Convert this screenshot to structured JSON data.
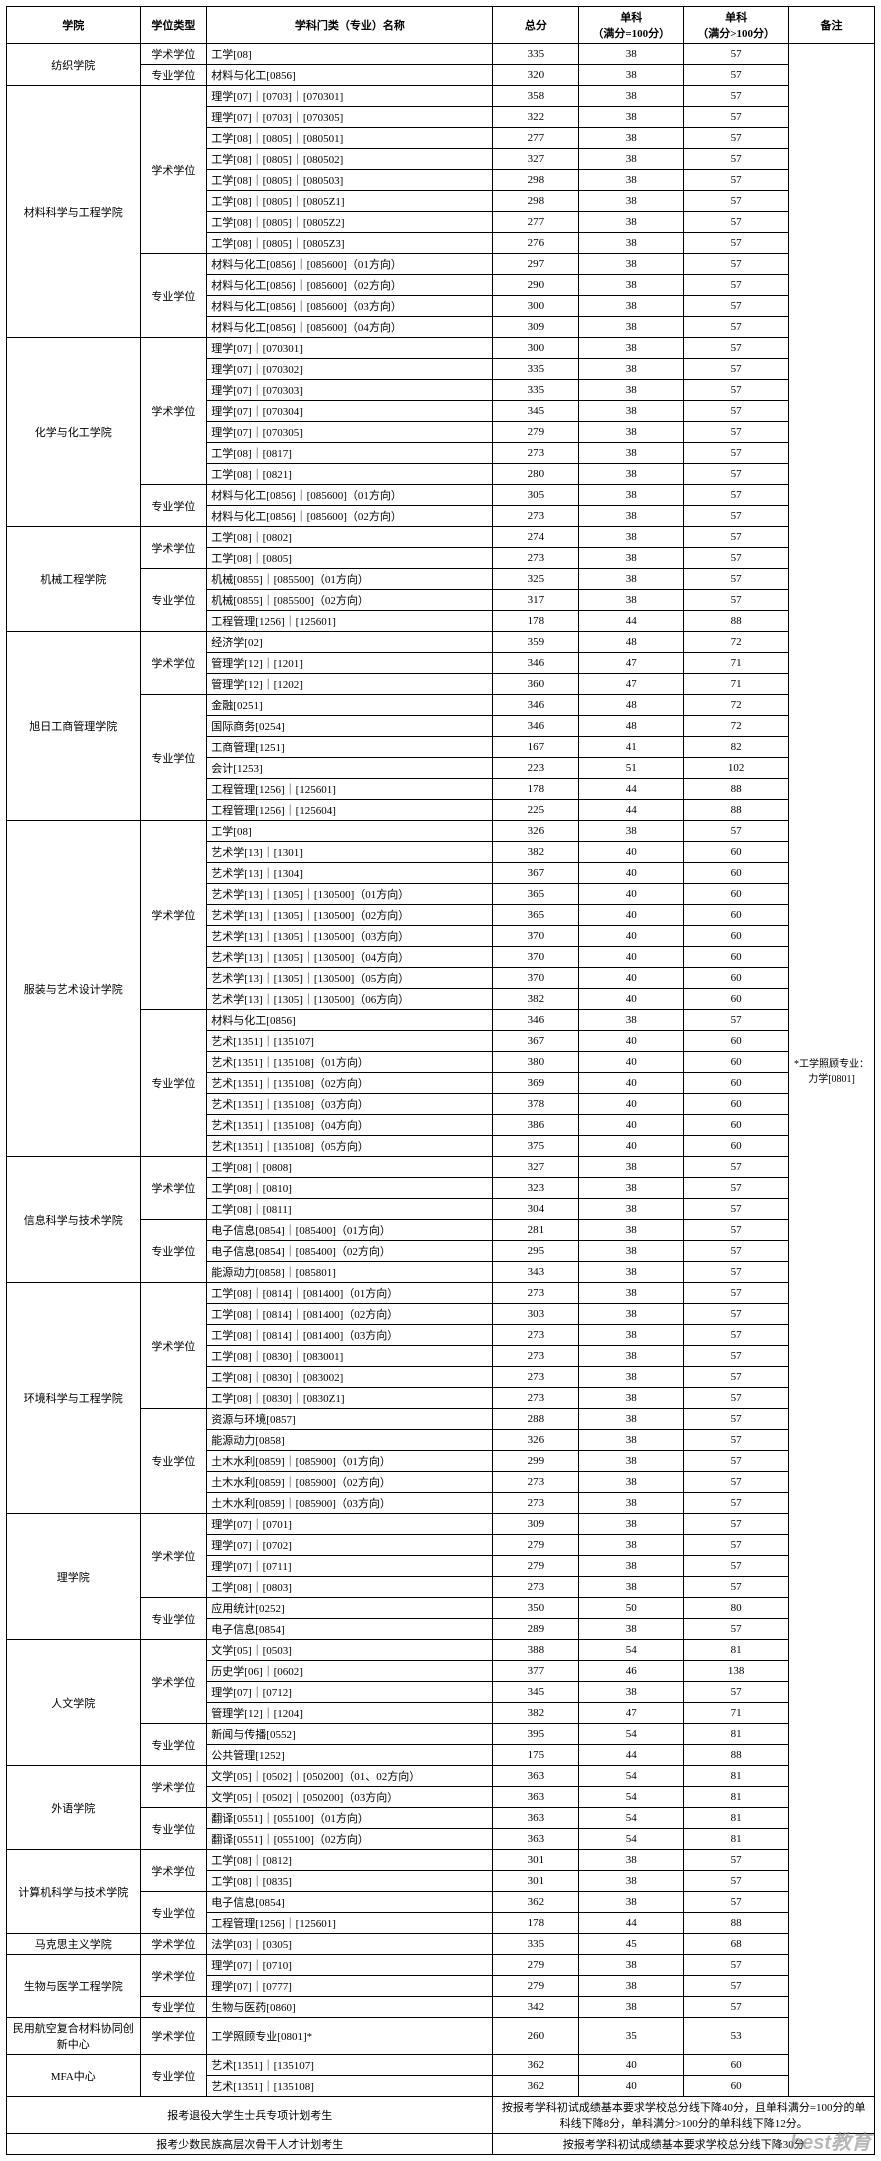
{
  "headers": {
    "college": "学院",
    "degree": "学位类型",
    "subject": "学科门类（专业）名称",
    "total": "总分",
    "sub1": "单科\n（满分=100分）",
    "sub2": "单科\n（满分>100分）",
    "note": "备注"
  },
  "note_text": "*工学照顾专业：力学[0801]",
  "footer": {
    "row1_label": "报考退役大学生士兵专项计划考生",
    "row1_text": "按报考学科初试成绩基本要求学校总分线下降40分，且单科满分=100分的单科线下降8分，单科满分>100分的单科线下降12分。",
    "row2_label": "报考少数民族高层次骨干人才计划考生",
    "row2_text": "按报考学科初试成绩基本要求学校总分线下降30分"
  },
  "watermark": "best教育",
  "rows": [
    {
      "college": "纺织学院",
      "college_rs": 2,
      "degree": "学术学位",
      "degree_rs": 1,
      "subject": "工学[08]",
      "total": "335",
      "s1": "38",
      "s2": "57"
    },
    {
      "degree": "专业学位",
      "degree_rs": 1,
      "subject": "材料与化工[0856]",
      "total": "320",
      "s1": "38",
      "s2": "57"
    },
    {
      "college": "材料科学与工程学院",
      "college_rs": 12,
      "degree": "学术学位",
      "degree_rs": 8,
      "subject": "理学[07]｜[0703]｜[070301]",
      "total": "358",
      "s1": "38",
      "s2": "57"
    },
    {
      "subject": "理学[07]｜[0703]｜[070305]",
      "total": "322",
      "s1": "38",
      "s2": "57"
    },
    {
      "subject": "工学[08]｜[0805]｜[080501]",
      "total": "277",
      "s1": "38",
      "s2": "57"
    },
    {
      "subject": "工学[08]｜[0805]｜[080502]",
      "total": "327",
      "s1": "38",
      "s2": "57"
    },
    {
      "subject": "工学[08]｜[0805]｜[080503]",
      "total": "298",
      "s1": "38",
      "s2": "57"
    },
    {
      "subject": "工学[08]｜[0805]｜[0805Z1]",
      "total": "298",
      "s1": "38",
      "s2": "57"
    },
    {
      "subject": "工学[08]｜[0805]｜[0805Z2]",
      "total": "277",
      "s1": "38",
      "s2": "57"
    },
    {
      "subject": "工学[08]｜[0805]｜[0805Z3]",
      "total": "276",
      "s1": "38",
      "s2": "57"
    },
    {
      "degree": "专业学位",
      "degree_rs": 4,
      "subject": "材料与化工[0856]｜[085600]（01方向）",
      "total": "297",
      "s1": "38",
      "s2": "57"
    },
    {
      "subject": "材料与化工[0856]｜[085600]（02方向）",
      "total": "290",
      "s1": "38",
      "s2": "57"
    },
    {
      "subject": "材料与化工[0856]｜[085600]（03方向）",
      "total": "300",
      "s1": "38",
      "s2": "57"
    },
    {
      "subject": "材料与化工[0856]｜[085600]（04方向）",
      "total": "309",
      "s1": "38",
      "s2": "57"
    },
    {
      "college": "化学与化工学院",
      "college_rs": 9,
      "degree": "学术学位",
      "degree_rs": 7,
      "subject": "理学[07]｜[070301]",
      "total": "300",
      "s1": "38",
      "s2": "57"
    },
    {
      "subject": "理学[07]｜[070302]",
      "total": "335",
      "s1": "38",
      "s2": "57"
    },
    {
      "subject": "理学[07]｜[070303]",
      "total": "335",
      "s1": "38",
      "s2": "57"
    },
    {
      "subject": "理学[07]｜[070304]",
      "total": "345",
      "s1": "38",
      "s2": "57"
    },
    {
      "subject": "理学[07]｜[070305]",
      "total": "279",
      "s1": "38",
      "s2": "57"
    },
    {
      "subject": "工学[08]｜[0817]",
      "total": "273",
      "s1": "38",
      "s2": "57"
    },
    {
      "subject": "工学[08]｜[0821]",
      "total": "280",
      "s1": "38",
      "s2": "57"
    },
    {
      "degree": "专业学位",
      "degree_rs": 2,
      "subject": "材料与化工[0856]｜[085600]（01方向）",
      "total": "305",
      "s1": "38",
      "s2": "57"
    },
    {
      "subject": "材料与化工[0856]｜[085600]（02方向）",
      "total": "273",
      "s1": "38",
      "s2": "57"
    },
    {
      "college": "机械工程学院",
      "college_rs": 5,
      "degree": "学术学位",
      "degree_rs": 2,
      "subject": "工学[08]｜[0802]",
      "total": "274",
      "s1": "38",
      "s2": "57"
    },
    {
      "subject": "工学[08]｜[0805]",
      "total": "273",
      "s1": "38",
      "s2": "57"
    },
    {
      "degree": "专业学位",
      "degree_rs": 3,
      "subject": "机械[0855]｜[085500]（01方向）",
      "total": "325",
      "s1": "38",
      "s2": "57"
    },
    {
      "subject": "机械[0855]｜[085500]（02方向）",
      "total": "317",
      "s1": "38",
      "s2": "57"
    },
    {
      "subject": "工程管理[1256]｜[125601]",
      "total": "178",
      "s1": "44",
      "s2": "88"
    },
    {
      "college": "旭日工商管理学院",
      "college_rs": 9,
      "degree": "学术学位",
      "degree_rs": 3,
      "subject": "经济学[02]",
      "total": "359",
      "s1": "48",
      "s2": "72"
    },
    {
      "subject": "管理学[12]｜[1201]",
      "total": "346",
      "s1": "47",
      "s2": "71"
    },
    {
      "subject": "管理学[12]｜[1202]",
      "total": "360",
      "s1": "47",
      "s2": "71"
    },
    {
      "degree": "专业学位",
      "degree_rs": 6,
      "subject": "金融[0251]",
      "total": "346",
      "s1": "48",
      "s2": "72"
    },
    {
      "subject": "国际商务[0254]",
      "total": "346",
      "s1": "48",
      "s2": "72"
    },
    {
      "subject": "工商管理[1251]",
      "total": "167",
      "s1": "41",
      "s2": "82"
    },
    {
      "subject": "会计[1253]",
      "total": "223",
      "s1": "51",
      "s2": "102"
    },
    {
      "subject": "工程管理[1256]｜[125601]",
      "total": "178",
      "s1": "44",
      "s2": "88"
    },
    {
      "subject": "工程管理[1256]｜[125604]",
      "total": "225",
      "s1": "44",
      "s2": "88"
    },
    {
      "college": "服装与艺术设计学院",
      "college_rs": 16,
      "degree": "学术学位",
      "degree_rs": 9,
      "subject": "工学[08]",
      "total": "326",
      "s1": "38",
      "s2": "57"
    },
    {
      "subject": "艺术学[13]｜[1301]",
      "total": "382",
      "s1": "40",
      "s2": "60"
    },
    {
      "subject": "艺术学[13]｜[1304]",
      "total": "367",
      "s1": "40",
      "s2": "60"
    },
    {
      "subject": "艺术学[13]｜[1305]｜[130500]（01方向）",
      "total": "365",
      "s1": "40",
      "s2": "60"
    },
    {
      "subject": "艺术学[13]｜[1305]｜[130500]（02方向）",
      "total": "365",
      "s1": "40",
      "s2": "60"
    },
    {
      "subject": "艺术学[13]｜[1305]｜[130500]（03方向）",
      "total": "370",
      "s1": "40",
      "s2": "60"
    },
    {
      "subject": "艺术学[13]｜[1305]｜[130500]（04方向）",
      "total": "370",
      "s1": "40",
      "s2": "60"
    },
    {
      "subject": "艺术学[13]｜[1305]｜[130500]（05方向）",
      "total": "370",
      "s1": "40",
      "s2": "60"
    },
    {
      "subject": "艺术学[13]｜[1305]｜[130500]（06方向）",
      "total": "382",
      "s1": "40",
      "s2": "60"
    },
    {
      "degree": "专业学位",
      "degree_rs": 7,
      "subject": "材料与化工[0856]",
      "total": "346",
      "s1": "38",
      "s2": "57"
    },
    {
      "subject": "艺术[1351]｜[135107]",
      "total": "367",
      "s1": "40",
      "s2": "60"
    },
    {
      "subject": "艺术[1351]｜[135108]（01方向）",
      "total": "380",
      "s1": "40",
      "s2": "60"
    },
    {
      "subject": "艺术[1351]｜[135108]（02方向）",
      "total": "369",
      "s1": "40",
      "s2": "60"
    },
    {
      "subject": "艺术[1351]｜[135108]（03方向）",
      "total": "378",
      "s1": "40",
      "s2": "60"
    },
    {
      "subject": "艺术[1351]｜[135108]（04方向）",
      "total": "386",
      "s1": "40",
      "s2": "60"
    },
    {
      "subject": "艺术[1351]｜[135108]（05方向）",
      "total": "375",
      "s1": "40",
      "s2": "60"
    },
    {
      "college": "信息科学与技术学院",
      "college_rs": 6,
      "degree": "学术学位",
      "degree_rs": 3,
      "subject": "工学[08]｜[0808]",
      "total": "327",
      "s1": "38",
      "s2": "57"
    },
    {
      "subject": "工学[08]｜[0810]",
      "total": "323",
      "s1": "38",
      "s2": "57"
    },
    {
      "subject": "工学[08]｜[0811]",
      "total": "304",
      "s1": "38",
      "s2": "57"
    },
    {
      "degree": "专业学位",
      "degree_rs": 3,
      "subject": "电子信息[0854]｜[085400]（01方向）",
      "total": "281",
      "s1": "38",
      "s2": "57"
    },
    {
      "subject": "电子信息[0854]｜[085400]（02方向）",
      "total": "295",
      "s1": "38",
      "s2": "57"
    },
    {
      "subject": "能源动力[0858]｜[085801]",
      "total": "343",
      "s1": "38",
      "s2": "57"
    },
    {
      "college": "环境科学与工程学院",
      "college_rs": 11,
      "degree": "学术学位",
      "degree_rs": 6,
      "subject": "工学[08]｜[0814]｜[081400]（01方向）",
      "total": "273",
      "s1": "38",
      "s2": "57"
    },
    {
      "subject": "工学[08]｜[0814]｜[081400]（02方向）",
      "total": "303",
      "s1": "38",
      "s2": "57"
    },
    {
      "subject": "工学[08]｜[0814]｜[081400]（03方向）",
      "total": "273",
      "s1": "38",
      "s2": "57"
    },
    {
      "subject": "工学[08]｜[0830]｜[083001]",
      "total": "273",
      "s1": "38",
      "s2": "57"
    },
    {
      "subject": "工学[08]｜[0830]｜[083002]",
      "total": "273",
      "s1": "38",
      "s2": "57"
    },
    {
      "subject": "工学[08]｜[0830]｜[0830Z1]",
      "total": "273",
      "s1": "38",
      "s2": "57"
    },
    {
      "degree": "专业学位",
      "degree_rs": 5,
      "subject": "资源与环境[0857]",
      "total": "288",
      "s1": "38",
      "s2": "57"
    },
    {
      "subject": "能源动力[0858]",
      "total": "326",
      "s1": "38",
      "s2": "57"
    },
    {
      "subject": "土木水利[0859]｜[085900]（01方向）",
      "total": "299",
      "s1": "38",
      "s2": "57"
    },
    {
      "subject": "土木水利[0859]｜[085900]（02方向）",
      "total": "273",
      "s1": "38",
      "s2": "57"
    },
    {
      "subject": "土木水利[0859]｜[085900]（03方向）",
      "total": "273",
      "s1": "38",
      "s2": "57"
    },
    {
      "college": "理学院",
      "college_rs": 6,
      "degree": "学术学位",
      "degree_rs": 4,
      "subject": "理学[07]｜[0701]",
      "total": "309",
      "s1": "38",
      "s2": "57"
    },
    {
      "subject": "理学[07]｜[0702]",
      "total": "279",
      "s1": "38",
      "s2": "57"
    },
    {
      "subject": "理学[07]｜[0711]",
      "total": "279",
      "s1": "38",
      "s2": "57"
    },
    {
      "subject": "工学[08]｜[0803]",
      "total": "273",
      "s1": "38",
      "s2": "57"
    },
    {
      "degree": "专业学位",
      "degree_rs": 2,
      "subject": "应用统计[0252]",
      "total": "350",
      "s1": "50",
      "s2": "80"
    },
    {
      "subject": "电子信息[0854]",
      "total": "289",
      "s1": "38",
      "s2": "57"
    },
    {
      "college": "人文学院",
      "college_rs": 6,
      "degree": "学术学位",
      "degree_rs": 4,
      "subject": "文学[05]｜[0503]",
      "total": "388",
      "s1": "54",
      "s2": "81"
    },
    {
      "subject": "历史学[06]｜[0602]",
      "total": "377",
      "s1": "46",
      "s2": "138"
    },
    {
      "subject": "理学[07]｜[0712]",
      "total": "345",
      "s1": "38",
      "s2": "57"
    },
    {
      "subject": "管理学[12]｜[1204]",
      "total": "382",
      "s1": "47",
      "s2": "71"
    },
    {
      "degree": "专业学位",
      "degree_rs": 2,
      "subject": "新闻与传播[0552]",
      "total": "395",
      "s1": "54",
      "s2": "81"
    },
    {
      "subject": "公共管理[1252]",
      "total": "175",
      "s1": "44",
      "s2": "88"
    },
    {
      "college": "外语学院",
      "college_rs": 4,
      "degree": "学术学位",
      "degree_rs": 2,
      "subject": "文学[05]｜[0502]｜[050200]（01、02方向）",
      "total": "363",
      "s1": "54",
      "s2": "81"
    },
    {
      "subject": "文学[05]｜[0502]｜[050200]（03方向）",
      "total": "363",
      "s1": "54",
      "s2": "81"
    },
    {
      "degree": "专业学位",
      "degree_rs": 2,
      "subject": "翻译[0551]｜[055100]（01方向）",
      "total": "363",
      "s1": "54",
      "s2": "81"
    },
    {
      "subject": "翻译[0551]｜[055100]（02方向）",
      "total": "363",
      "s1": "54",
      "s2": "81"
    },
    {
      "college": "计算机科学与技术学院",
      "college_rs": 4,
      "degree": "学术学位",
      "degree_rs": 2,
      "subject": "工学[08]｜[0812]",
      "total": "301",
      "s1": "38",
      "s2": "57"
    },
    {
      "subject": "工学[08]｜[0835]",
      "total": "301",
      "s1": "38",
      "s2": "57"
    },
    {
      "degree": "专业学位",
      "degree_rs": 2,
      "subject": "电子信息[0854]",
      "total": "362",
      "s1": "38",
      "s2": "57"
    },
    {
      "subject": "工程管理[1256]｜[125601]",
      "total": "178",
      "s1": "44",
      "s2": "88"
    },
    {
      "college": "马克思主义学院",
      "college_rs": 1,
      "degree": "学术学位",
      "degree_rs": 1,
      "subject": "法学[03]｜[0305]",
      "total": "335",
      "s1": "45",
      "s2": "68"
    },
    {
      "college": "生物与医学工程学院",
      "college_rs": 3,
      "degree": "学术学位",
      "degree_rs": 2,
      "subject": "理学[07]｜[0710]",
      "total": "279",
      "s1": "38",
      "s2": "57"
    },
    {
      "subject": "理学[07]｜[0777]",
      "total": "279",
      "s1": "38",
      "s2": "57"
    },
    {
      "degree": "专业学位",
      "degree_rs": 1,
      "subject": "生物与医药[0860]",
      "total": "342",
      "s1": "38",
      "s2": "57"
    },
    {
      "college": "民用航空复合材料协同创新中心",
      "college_rs": 1,
      "degree": "学术学位",
      "degree_rs": 1,
      "subject": "工学照顾专业[0801]*",
      "total": "260",
      "s1": "35",
      "s2": "53"
    },
    {
      "college": "MFA中心",
      "college_rs": 2,
      "degree": "专业学位",
      "degree_rs": 2,
      "subject": "艺术[1351]｜[135107]",
      "total": "362",
      "s1": "40",
      "s2": "60"
    },
    {
      "subject": "艺术[1351]｜[135108]",
      "total": "362",
      "s1": "40",
      "s2": "60"
    }
  ]
}
